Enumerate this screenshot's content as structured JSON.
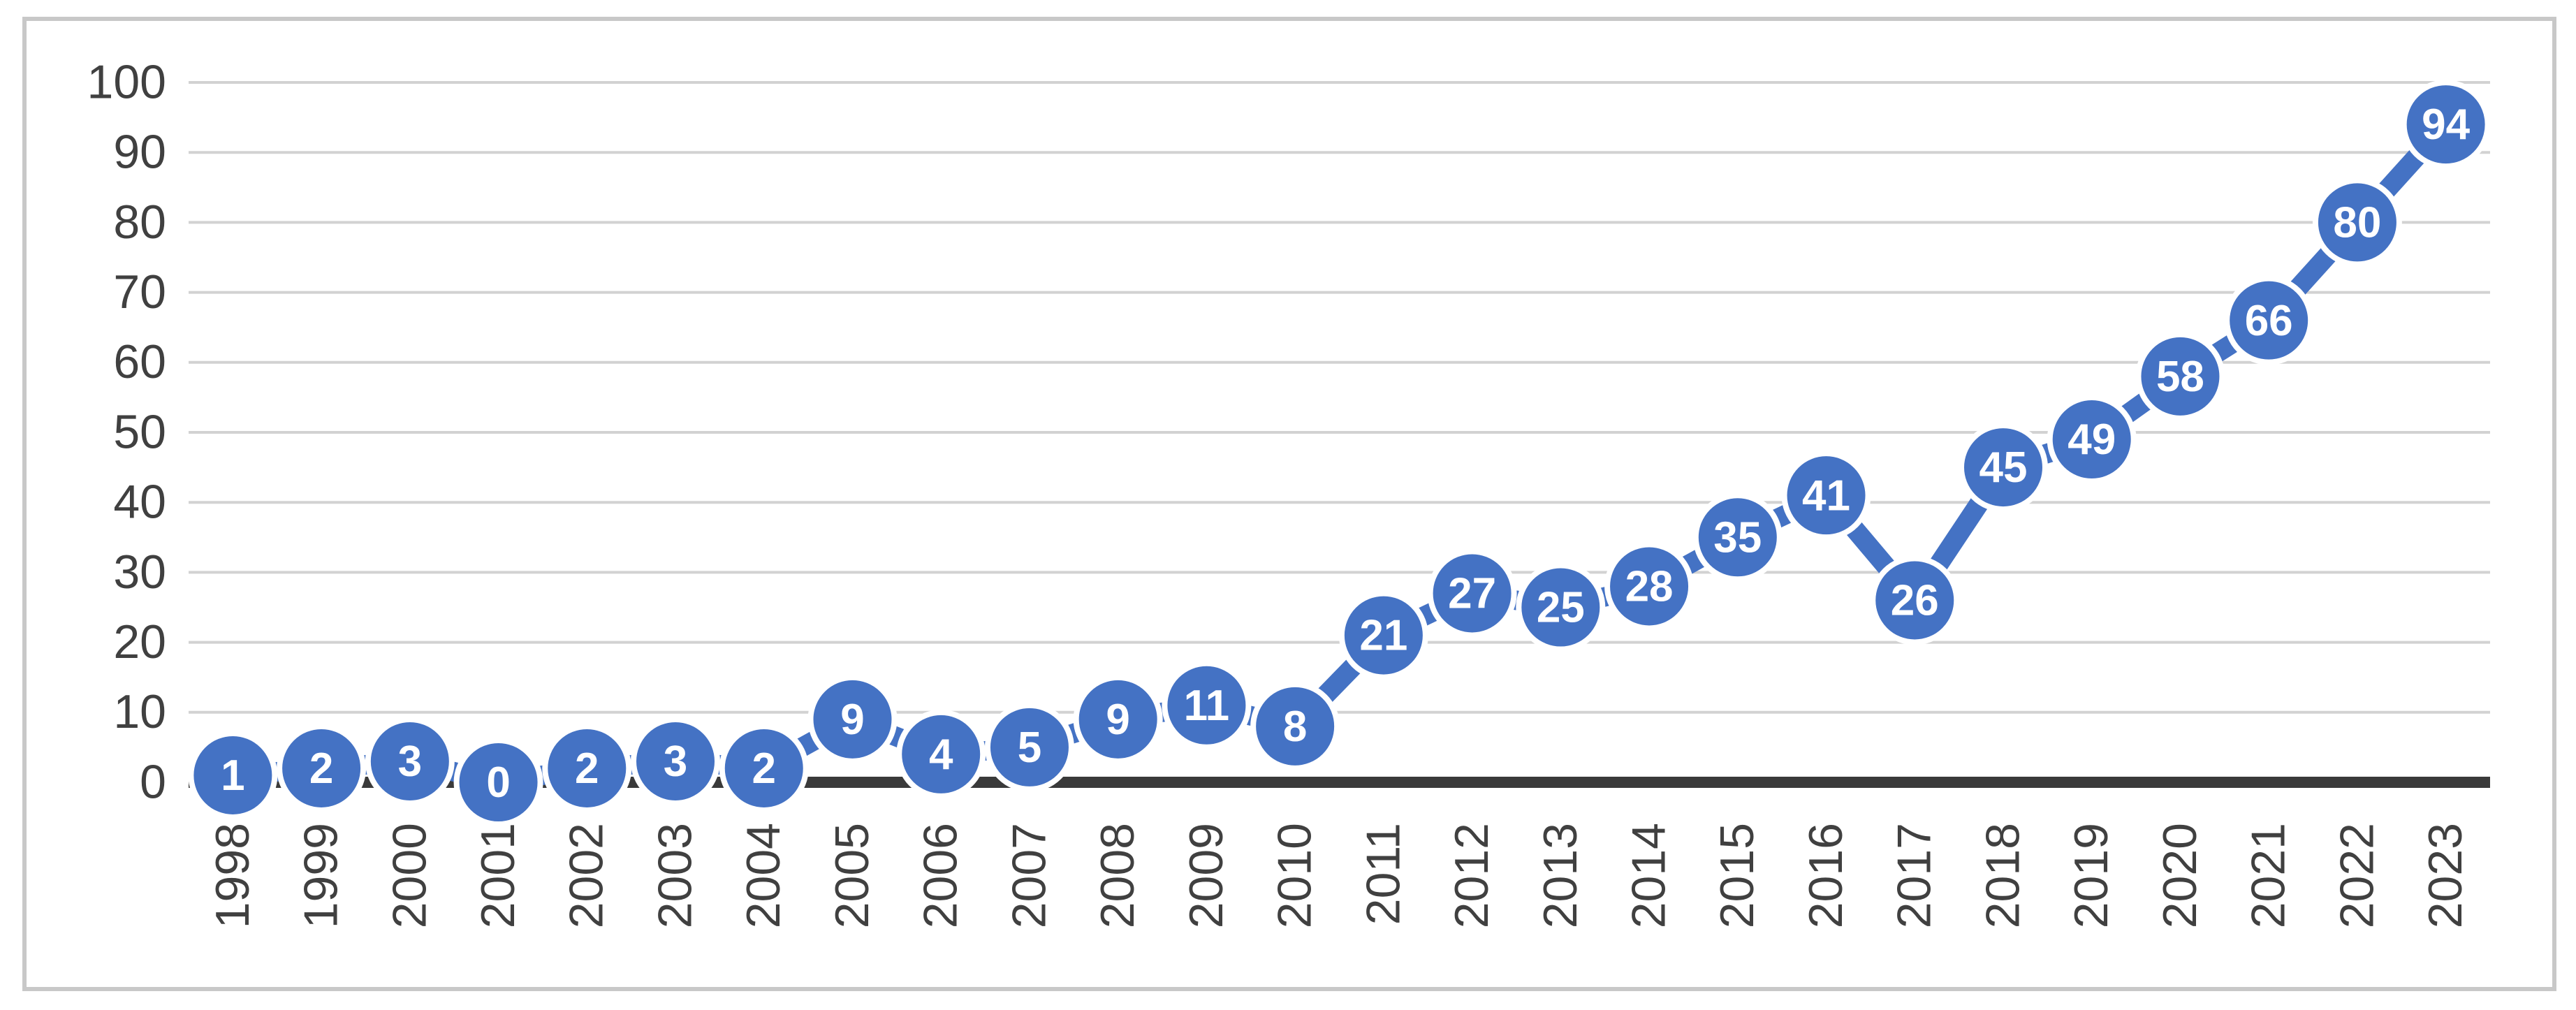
{
  "chart_data": {
    "type": "line",
    "title": "",
    "xlabel": "",
    "ylabel": "",
    "categories": [
      "1998",
      "1999",
      "2000",
      "2001",
      "2002",
      "2003",
      "2004",
      "2005",
      "2006",
      "2007",
      "2008",
      "2009",
      "2010",
      "2011",
      "2012",
      "2013",
      "2014",
      "2015",
      "2016",
      "2017",
      "2018",
      "2019",
      "2020",
      "2021",
      "2022",
      "2023"
    ],
    "values": [
      1,
      2,
      3,
      0,
      2,
      3,
      2,
      9,
      4,
      5,
      9,
      11,
      8,
      21,
      27,
      25,
      28,
      35,
      41,
      26,
      45,
      49,
      58,
      66,
      80,
      94
    ],
    "ylim": [
      0,
      100
    ],
    "yticks": [
      0,
      10,
      20,
      30,
      40,
      50,
      60,
      70,
      80,
      90,
      100
    ],
    "grid": "horizontal",
    "legend": "none",
    "marker": "filled-circle",
    "data_labels": "centered-in-marker",
    "x_tick_rotation_deg": -90,
    "colors": {
      "series": "#4472c4",
      "marker_outline": "#ffffff",
      "data_label_text": "#ffffff",
      "gridline": "#d2d2d2",
      "axis_line": "#3a3a3a",
      "tick_label": "#404040",
      "chart_border": "#c8c8c8",
      "background": "#ffffff"
    }
  }
}
